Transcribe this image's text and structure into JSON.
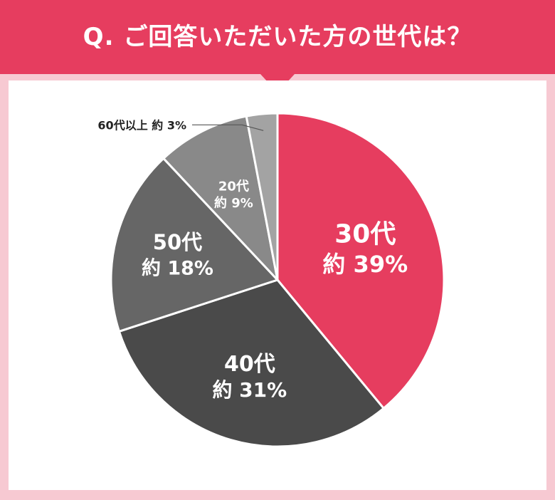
{
  "header": {
    "title": "Q. ご回答いただいた方の世代は？"
  },
  "colors": {
    "header_bg": "#e63d5f",
    "page_bg": "#f7c9d2",
    "panel_bg": "#ffffff"
  },
  "chart_data": {
    "type": "pie",
    "title": "Q. ご回答いただいた方の世代は？",
    "slices": [
      {
        "name": "30代",
        "value_label": "約 39%",
        "value": 39,
        "color": "#e63d5f"
      },
      {
        "name": "40代",
        "value_label": "約 31%",
        "value": 31,
        "color": "#4a4a4a"
      },
      {
        "name": "50代",
        "value_label": "約 18%",
        "value": 18,
        "color": "#666666"
      },
      {
        "name": "20代",
        "value_label": "約 9%",
        "value": 9,
        "color": "#898989"
      },
      {
        "name": "60代以上",
        "value_label": "約 3%",
        "value": 3,
        "color": "#a3a3a3"
      }
    ],
    "start": "12 o'clock",
    "direction": "clockwise"
  }
}
